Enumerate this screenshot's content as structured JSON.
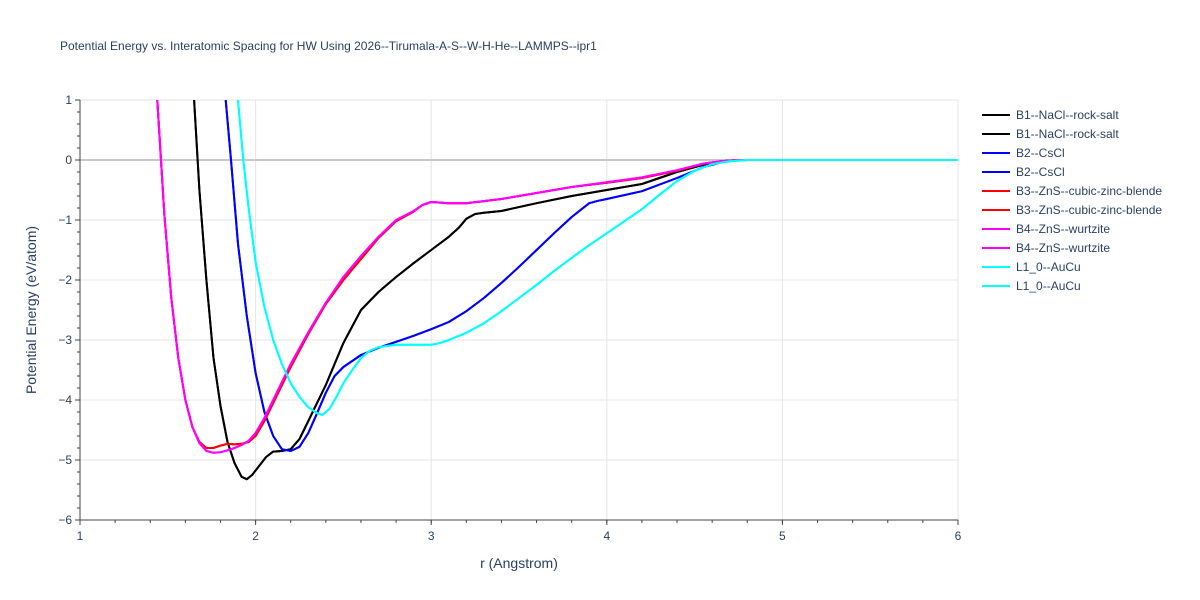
{
  "chart_data": {
    "type": "line",
    "title": "Potential Energy vs. Interatomic Spacing for HW Using 2026--Tirumala-A-S--W-H-He--LAMMPS--ipr1",
    "xlabel": "r (Angstrom)",
    "ylabel": "Potential Energy (eV/atom)",
    "xlim": [
      1,
      6
    ],
    "ylim": [
      -6,
      1
    ],
    "xticks": [
      "1",
      "2",
      "3",
      "4",
      "5",
      "6"
    ],
    "yticks": [
      "1",
      "0",
      "−1",
      "−2",
      "−3",
      "−4",
      "−5",
      "−6"
    ],
    "grid": true,
    "legend_position": "right",
    "series": [
      {
        "name": "B1--NaCl--rock-salt",
        "color": "#000000",
        "x": [
          1.65,
          1.68,
          1.72,
          1.76,
          1.8,
          1.84,
          1.88,
          1.92,
          1.95,
          1.98,
          2.02,
          2.06,
          2.1,
          2.15,
          2.2,
          2.25,
          2.3,
          2.4,
          2.5,
          2.6,
          2.7,
          2.8,
          2.9,
          3.0,
          3.1,
          3.16,
          3.2,
          3.25,
          3.3,
          3.4,
          3.6,
          3.8,
          4.0,
          4.2,
          4.4,
          4.55,
          4.65,
          4.75,
          5.0,
          5.5,
          6.0
        ],
        "y": [
          1.0,
          -0.5,
          -2.0,
          -3.3,
          -4.1,
          -4.7,
          -5.05,
          -5.28,
          -5.32,
          -5.25,
          -5.1,
          -4.95,
          -4.86,
          -4.85,
          -4.82,
          -4.65,
          -4.35,
          -3.75,
          -3.05,
          -2.5,
          -2.2,
          -1.95,
          -1.72,
          -1.5,
          -1.28,
          -1.12,
          -0.98,
          -0.9,
          -0.88,
          -0.85,
          -0.72,
          -0.6,
          -0.5,
          -0.4,
          -0.2,
          -0.08,
          -0.02,
          0.0,
          0.0,
          0.0,
          0.0
        ]
      },
      {
        "name": "B1--NaCl--rock-salt",
        "color": "#000000",
        "x": [
          1.65,
          1.68,
          1.72,
          1.76,
          1.8,
          1.84,
          1.88,
          1.92,
          1.95,
          1.98,
          2.02,
          2.06,
          2.1,
          2.15,
          2.2,
          2.25,
          2.3,
          2.4,
          2.5,
          2.6,
          2.7,
          2.8,
          2.9,
          3.0,
          3.1,
          3.16,
          3.2,
          3.25,
          3.3,
          3.4,
          3.6,
          3.8,
          4.0,
          4.2,
          4.4,
          4.55,
          4.65,
          4.75,
          5.0,
          5.5,
          6.0
        ],
        "y": [
          1.0,
          -0.5,
          -2.0,
          -3.3,
          -4.1,
          -4.7,
          -5.05,
          -5.28,
          -5.32,
          -5.25,
          -5.1,
          -4.95,
          -4.86,
          -4.85,
          -4.82,
          -4.65,
          -4.35,
          -3.75,
          -3.05,
          -2.5,
          -2.2,
          -1.95,
          -1.72,
          -1.5,
          -1.28,
          -1.12,
          -0.98,
          -0.9,
          -0.88,
          -0.85,
          -0.72,
          -0.6,
          -0.5,
          -0.4,
          -0.2,
          -0.08,
          -0.02,
          0.0,
          0.0,
          0.0,
          0.0
        ]
      },
      {
        "name": "B2--CsCl",
        "color": "#0000ff",
        "x": [
          1.83,
          1.86,
          1.9,
          1.95,
          2.0,
          2.05,
          2.1,
          2.15,
          2.2,
          2.25,
          2.3,
          2.35,
          2.4,
          2.45,
          2.5,
          2.6,
          2.7,
          2.8,
          2.9,
          3.0,
          3.1,
          3.2,
          3.3,
          3.4,
          3.5,
          3.6,
          3.7,
          3.8,
          3.9,
          3.95,
          4.0,
          4.2,
          4.4,
          4.55,
          4.65,
          4.75,
          5.0,
          5.5,
          6.0
        ],
        "y": [
          1.0,
          0.0,
          -1.4,
          -2.6,
          -3.55,
          -4.2,
          -4.6,
          -4.82,
          -4.85,
          -4.78,
          -4.55,
          -4.22,
          -3.88,
          -3.6,
          -3.45,
          -3.25,
          -3.13,
          -3.03,
          -2.93,
          -2.82,
          -2.7,
          -2.52,
          -2.3,
          -2.05,
          -1.78,
          -1.5,
          -1.22,
          -0.95,
          -0.72,
          -0.68,
          -0.65,
          -0.52,
          -0.3,
          -0.12,
          -0.04,
          0.0,
          0.0,
          0.0,
          0.0
        ]
      },
      {
        "name": "B2--CsCl",
        "color": "#0000ff",
        "x": [
          1.83,
          1.86,
          1.9,
          1.95,
          2.0,
          2.05,
          2.1,
          2.15,
          2.2,
          2.25,
          2.3,
          2.35,
          2.4,
          2.45,
          2.5,
          2.6,
          2.7,
          2.8,
          2.9,
          3.0,
          3.1,
          3.2,
          3.3,
          3.4,
          3.5,
          3.6,
          3.7,
          3.8,
          3.9,
          3.95,
          4.0,
          4.2,
          4.4,
          4.55,
          4.65,
          4.75,
          5.0,
          5.5,
          6.0
        ],
        "y": [
          1.0,
          0.0,
          -1.4,
          -2.6,
          -3.55,
          -4.2,
          -4.6,
          -4.82,
          -4.85,
          -4.78,
          -4.55,
          -4.22,
          -3.88,
          -3.6,
          -3.45,
          -3.25,
          -3.13,
          -3.03,
          -2.93,
          -2.82,
          -2.7,
          -2.52,
          -2.3,
          -2.05,
          -1.78,
          -1.5,
          -1.22,
          -0.95,
          -0.72,
          -0.68,
          -0.65,
          -0.52,
          -0.3,
          -0.12,
          -0.04,
          0.0,
          0.0,
          0.0,
          0.0
        ]
      },
      {
        "name": "B3--ZnS--cubic-zinc-blende",
        "color": "#ff0000",
        "x": [
          1.44,
          1.48,
          1.52,
          1.56,
          1.6,
          1.64,
          1.68,
          1.72,
          1.76,
          1.8,
          1.84,
          1.88,
          1.92,
          1.96,
          2.0,
          2.05,
          2.1,
          2.2,
          2.3,
          2.4,
          2.5,
          2.6,
          2.7,
          2.8,
          2.9,
          2.95,
          3.0,
          3.1,
          3.2,
          3.4,
          3.6,
          3.8,
          4.0,
          4.2,
          4.4,
          4.55,
          4.65,
          4.75,
          5.0,
          5.5,
          6.0
        ],
        "y": [
          1.0,
          -0.9,
          -2.3,
          -3.3,
          -4.0,
          -4.45,
          -4.7,
          -4.8,
          -4.8,
          -4.76,
          -4.73,
          -4.74,
          -4.73,
          -4.7,
          -4.6,
          -4.35,
          -4.05,
          -3.45,
          -2.9,
          -2.4,
          -2.0,
          -1.65,
          -1.3,
          -1.02,
          -0.86,
          -0.75,
          -0.7,
          -0.72,
          -0.72,
          -0.65,
          -0.55,
          -0.45,
          -0.38,
          -0.3,
          -0.18,
          -0.06,
          -0.02,
          0.0,
          0.0,
          0.0,
          0.0
        ]
      },
      {
        "name": "B3--ZnS--cubic-zinc-blende",
        "color": "#ff0000",
        "x": [
          1.44,
          1.48,
          1.52,
          1.56,
          1.6,
          1.64,
          1.68,
          1.72,
          1.76,
          1.8,
          1.84,
          1.88,
          1.92,
          1.96,
          2.0,
          2.05,
          2.1,
          2.2,
          2.3,
          2.4,
          2.5,
          2.6,
          2.7,
          2.8,
          2.9,
          2.95,
          3.0,
          3.1,
          3.2,
          3.4,
          3.6,
          3.8,
          4.0,
          4.2,
          4.4,
          4.55,
          4.65,
          4.75,
          5.0,
          5.5,
          6.0
        ],
        "y": [
          1.0,
          -0.9,
          -2.3,
          -3.3,
          -4.0,
          -4.45,
          -4.7,
          -4.8,
          -4.8,
          -4.76,
          -4.73,
          -4.74,
          -4.73,
          -4.7,
          -4.6,
          -4.35,
          -4.05,
          -3.45,
          -2.9,
          -2.4,
          -2.0,
          -1.65,
          -1.3,
          -1.02,
          -0.86,
          -0.75,
          -0.7,
          -0.72,
          -0.72,
          -0.65,
          -0.55,
          -0.45,
          -0.38,
          -0.3,
          -0.18,
          -0.06,
          -0.02,
          0.0,
          0.0,
          0.0,
          0.0
        ]
      },
      {
        "name": "B4--ZnS--wurtzite",
        "color": "#ff00ff",
        "x": [
          1.44,
          1.48,
          1.52,
          1.56,
          1.6,
          1.64,
          1.68,
          1.72,
          1.76,
          1.8,
          1.84,
          1.88,
          1.92,
          1.96,
          2.0,
          2.05,
          2.1,
          2.2,
          2.3,
          2.4,
          2.5,
          2.6,
          2.7,
          2.8,
          2.9,
          2.95,
          3.0,
          3.1,
          3.2,
          3.4,
          3.6,
          3.8,
          4.0,
          4.2,
          4.4,
          4.55,
          4.65,
          4.75,
          5.0,
          5.5,
          6.0
        ],
        "y": [
          1.0,
          -0.9,
          -2.3,
          -3.3,
          -4.0,
          -4.45,
          -4.72,
          -4.85,
          -4.88,
          -4.87,
          -4.84,
          -4.8,
          -4.75,
          -4.68,
          -4.55,
          -4.3,
          -4.0,
          -3.4,
          -2.87,
          -2.38,
          -1.95,
          -1.6,
          -1.28,
          -1.0,
          -0.85,
          -0.75,
          -0.7,
          -0.72,
          -0.72,
          -0.65,
          -0.55,
          -0.45,
          -0.37,
          -0.29,
          -0.17,
          -0.06,
          -0.02,
          0.0,
          0.0,
          0.0,
          0.0
        ]
      },
      {
        "name": "B4--ZnS--wurtzite",
        "color": "#ff00ff",
        "x": [
          1.44,
          1.48,
          1.52,
          1.56,
          1.6,
          1.64,
          1.68,
          1.72,
          1.76,
          1.8,
          1.84,
          1.88,
          1.92,
          1.96,
          2.0,
          2.05,
          2.1,
          2.2,
          2.3,
          2.4,
          2.5,
          2.6,
          2.7,
          2.8,
          2.9,
          2.95,
          3.0,
          3.1,
          3.2,
          3.4,
          3.6,
          3.8,
          4.0,
          4.2,
          4.4,
          4.55,
          4.65,
          4.75,
          5.0,
          5.5,
          6.0
        ],
        "y": [
          1.0,
          -0.9,
          -2.3,
          -3.3,
          -4.0,
          -4.45,
          -4.72,
          -4.85,
          -4.88,
          -4.87,
          -4.84,
          -4.8,
          -4.75,
          -4.68,
          -4.55,
          -4.3,
          -4.0,
          -3.4,
          -2.87,
          -2.38,
          -1.95,
          -1.6,
          -1.28,
          -1.0,
          -0.85,
          -0.75,
          -0.7,
          -0.72,
          -0.72,
          -0.65,
          -0.55,
          -0.45,
          -0.37,
          -0.29,
          -0.17,
          -0.06,
          -0.02,
          0.0,
          0.0,
          0.0,
          0.0
        ]
      },
      {
        "name": "L1_0--AuCu",
        "color": "#00ffff",
        "x": [
          1.9,
          1.93,
          1.96,
          2.0,
          2.05,
          2.1,
          2.15,
          2.2,
          2.25,
          2.3,
          2.35,
          2.38,
          2.42,
          2.46,
          2.5,
          2.55,
          2.6,
          2.65,
          2.7,
          2.8,
          2.9,
          3.0,
          3.05,
          3.1,
          3.2,
          3.3,
          3.4,
          3.5,
          3.6,
          3.7,
          3.8,
          3.9,
          4.0,
          4.1,
          4.2,
          4.3,
          4.4,
          4.5,
          4.6,
          4.7,
          4.8,
          5.0,
          5.5,
          6.0
        ],
        "y": [
          1.0,
          0.0,
          -0.8,
          -1.7,
          -2.45,
          -3.0,
          -3.4,
          -3.72,
          -3.95,
          -4.12,
          -4.22,
          -4.25,
          -4.15,
          -3.95,
          -3.72,
          -3.5,
          -3.3,
          -3.18,
          -3.12,
          -3.08,
          -3.08,
          -3.08,
          -3.05,
          -3.0,
          -2.88,
          -2.72,
          -2.52,
          -2.3,
          -2.08,
          -1.85,
          -1.63,
          -1.42,
          -1.22,
          -1.02,
          -0.82,
          -0.58,
          -0.35,
          -0.18,
          -0.07,
          -0.02,
          0.0,
          0.0,
          0.0,
          0.0
        ]
      },
      {
        "name": "L1_0--AuCu",
        "color": "#00ffff",
        "x": [
          1.9,
          1.93,
          1.96,
          2.0,
          2.05,
          2.1,
          2.15,
          2.2,
          2.25,
          2.3,
          2.35,
          2.38,
          2.42,
          2.46,
          2.5,
          2.55,
          2.6,
          2.65,
          2.7,
          2.8,
          2.9,
          3.0,
          3.05,
          3.1,
          3.2,
          3.3,
          3.4,
          3.5,
          3.6,
          3.7,
          3.8,
          3.9,
          4.0,
          4.1,
          4.2,
          4.3,
          4.4,
          4.5,
          4.6,
          4.7,
          4.8,
          5.0,
          5.5,
          6.0
        ],
        "y": [
          1.0,
          0.0,
          -0.8,
          -1.7,
          -2.45,
          -3.0,
          -3.4,
          -3.72,
          -3.95,
          -4.12,
          -4.22,
          -4.25,
          -4.15,
          -3.95,
          -3.72,
          -3.5,
          -3.3,
          -3.18,
          -3.12,
          -3.08,
          -3.08,
          -3.08,
          -3.05,
          -3.0,
          -2.88,
          -2.72,
          -2.52,
          -2.3,
          -2.08,
          -1.85,
          -1.63,
          -1.42,
          -1.22,
          -1.02,
          -0.82,
          -0.58,
          -0.35,
          -0.18,
          -0.07,
          -0.02,
          0.0,
          0.0,
          0.0,
          0.0
        ]
      }
    ]
  }
}
